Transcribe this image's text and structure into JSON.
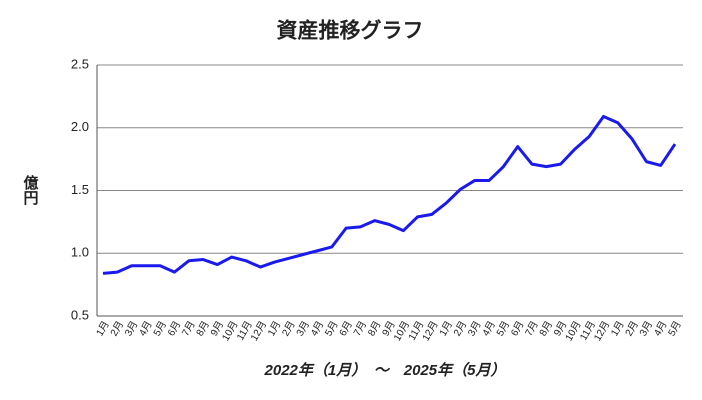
{
  "chart_data": {
    "type": "line",
    "title": "資産推移グラフ",
    "ylabel": "億円",
    "xlabel": "2022年（1月）　〜　2025年（5月）",
    "categories": [
      "1月",
      "2月",
      "3月",
      "4月",
      "5月",
      "6月",
      "7月",
      "8月",
      "9月",
      "10月",
      "11月",
      "12月",
      "1月",
      "2月",
      "3月",
      "4月",
      "5月",
      "6月",
      "7月",
      "8月",
      "9月",
      "10月",
      "11月",
      "12月",
      "1月",
      "2月",
      "3月",
      "4月",
      "5月",
      "6月",
      "7月",
      "8月",
      "9月",
      "10月",
      "11月",
      "12月",
      "1月",
      "2月",
      "3月",
      "4月",
      "5月"
    ],
    "series": [
      {
        "name": "資産",
        "color": "#1a1aee",
        "values": [
          0.84,
          0.85,
          0.9,
          0.9,
          0.9,
          0.85,
          0.94,
          0.95,
          0.91,
          0.97,
          0.94,
          0.89,
          0.93,
          0.96,
          0.99,
          1.02,
          1.05,
          1.2,
          1.21,
          1.26,
          1.23,
          1.18,
          1.29,
          1.31,
          1.4,
          1.51,
          1.58,
          1.58,
          1.69,
          1.85,
          1.71,
          1.69,
          1.71,
          1.83,
          1.93,
          2.09,
          2.04,
          1.91,
          1.73,
          1.7,
          1.87
        ]
      }
    ],
    "ylim": [
      0.5,
      2.5
    ],
    "yticks": [
      0.5,
      {
        "value": 1.0,
        "label": "1.0"
      },
      1.5,
      {
        "value": 2.0,
        "label": "2.0"
      },
      2.5
    ],
    "grid": true
  }
}
